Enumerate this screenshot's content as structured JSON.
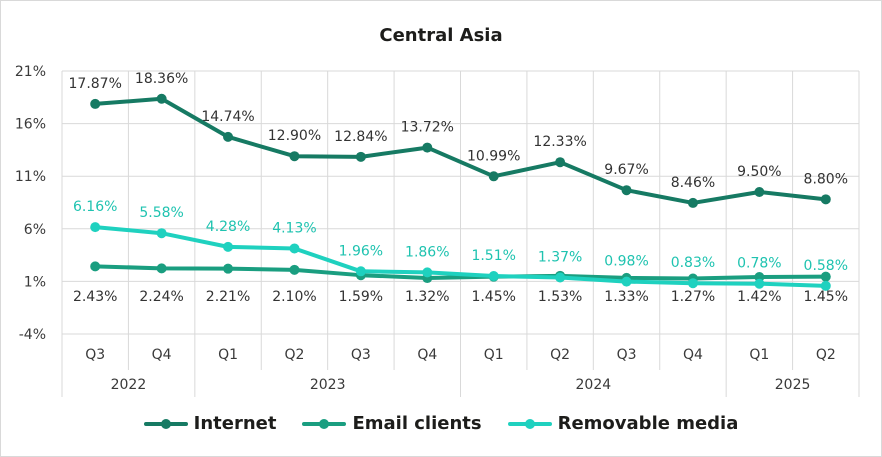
{
  "chart_data": {
    "type": "line",
    "title": "Central Asia",
    "categories": [
      "Q3",
      "Q4",
      "Q1",
      "Q2",
      "Q3",
      "Q4",
      "Q1",
      "Q2",
      "Q3",
      "Q4",
      "Q1",
      "Q2"
    ],
    "years": [
      {
        "label": "2022",
        "quarters": 2
      },
      {
        "label": "2023",
        "quarters": 4
      },
      {
        "label": "2024",
        "quarters": 4
      },
      {
        "label": "2025",
        "quarters": 2
      }
    ],
    "yticks": [
      "21%",
      "16%",
      "11%",
      "6%",
      "1%",
      "-4%"
    ],
    "ylim": [
      -4,
      21
    ],
    "grid": true,
    "legend_position": "bottom",
    "series": [
      {
        "name": "Internet",
        "color": "#167a63",
        "label_color": "#333333",
        "label_position": "above",
        "values": [
          17.87,
          18.36,
          14.74,
          12.9,
          12.84,
          13.72,
          10.99,
          12.33,
          9.67,
          8.46,
          9.5,
          8.8
        ],
        "labels": [
          "17.87%",
          "18.36%",
          "14.74%",
          "12.90%",
          "12.84%",
          "13.72%",
          "10.99%",
          "12.33%",
          "9.67%",
          "8.46%",
          "9.50%",
          "8.80%"
        ]
      },
      {
        "name": "Email clients",
        "color": "#1a9e80",
        "label_color": "#333333",
        "label_position": "below",
        "values": [
          2.43,
          2.24,
          2.21,
          2.1,
          1.59,
          1.32,
          1.45,
          1.53,
          1.33,
          1.27,
          1.42,
          1.45
        ],
        "labels": [
          "2.43%",
          "2.24%",
          "2.21%",
          "2.10%",
          "1.59%",
          "1.32%",
          "1.45%",
          "1.53%",
          "1.33%",
          "1.27%",
          "1.42%",
          "1.45%"
        ]
      },
      {
        "name": "Removable media",
        "color": "#1fd1bf",
        "label_color": "#1fc3b0",
        "label_position": "above",
        "values": [
          6.16,
          5.58,
          4.28,
          4.13,
          1.96,
          1.86,
          1.51,
          1.37,
          0.98,
          0.83,
          0.78,
          0.58
        ],
        "labels": [
          "6.16%",
          "5.58%",
          "4.28%",
          "4.13%",
          "1.96%",
          "1.86%",
          "1.51%",
          "1.37%",
          "0.98%",
          "0.83%",
          "0.78%",
          "0.58%"
        ]
      }
    ]
  }
}
